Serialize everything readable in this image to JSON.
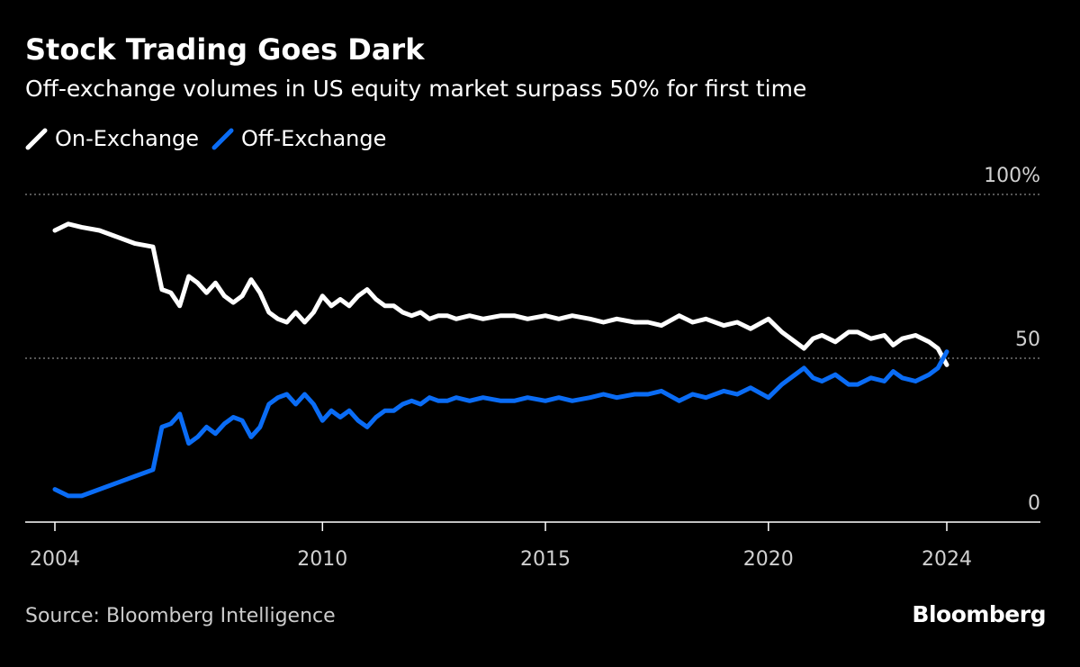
{
  "chart_data": {
    "type": "line",
    "title": "Stock Trading Goes Dark",
    "subtitle": "Off-exchange volumes in US equity market surpass 50% for first time",
    "x_ticks": [
      "2004",
      "2010",
      "2015",
      "2020",
      "2024"
    ],
    "y_ticks": [
      "0",
      "50",
      "100%"
    ],
    "xlim": [
      2004,
      2026
    ],
    "ylim": [
      0,
      100
    ],
    "grid": "dotted at 50 and 100",
    "legend_position": "top-left",
    "series": [
      {
        "name": "On-Exchange",
        "color": "#ffffff",
        "x": [
          2004.0,
          2004.3,
          2004.6,
          2005.0,
          2005.4,
          2005.8,
          2006.2,
          2006.4,
          2006.6,
          2006.8,
          2007.0,
          2007.2,
          2007.4,
          2007.6,
          2007.8,
          2008.0,
          2008.2,
          2008.4,
          2008.6,
          2008.8,
          2009.0,
          2009.2,
          2009.4,
          2009.6,
          2009.8,
          2010.0,
          2010.2,
          2010.4,
          2010.6,
          2010.8,
          2011.0,
          2011.2,
          2011.4,
          2011.6,
          2011.8,
          2012.0,
          2012.2,
          2012.4,
          2012.6,
          2012.8,
          2013.0,
          2013.3,
          2013.6,
          2014.0,
          2014.3,
          2014.6,
          2015.0,
          2015.3,
          2015.6,
          2016.0,
          2016.3,
          2016.6,
          2017.0,
          2017.3,
          2017.6,
          2018.0,
          2018.3,
          2018.6,
          2019.0,
          2019.3,
          2019.6,
          2020.0,
          2020.3,
          2020.6,
          2020.8,
          2021.0,
          2021.2,
          2021.5,
          2021.8,
          2022.0,
          2022.3,
          2022.6,
          2022.8,
          2023.0,
          2023.3,
          2023.6,
          2023.8,
          2024.0
        ],
        "values": [
          89,
          91,
          90,
          89,
          87,
          85,
          84,
          71,
          70,
          66,
          75,
          73,
          70,
          73,
          69,
          67,
          69,
          74,
          70,
          64,
          62,
          61,
          64,
          61,
          64,
          69,
          66,
          68,
          66,
          69,
          71,
          68,
          66,
          66,
          64,
          63,
          64,
          62,
          63,
          63,
          62,
          63,
          62,
          63,
          63,
          62,
          63,
          62,
          63,
          62,
          61,
          62,
          61,
          61,
          60,
          63,
          61,
          62,
          60,
          61,
          59,
          62,
          58,
          55,
          53,
          56,
          57,
          55,
          58,
          58,
          56,
          57,
          54,
          56,
          57,
          55,
          53,
          48
        ]
      },
      {
        "name": "Off-Exchange",
        "color": "#0a6cf5",
        "x": [
          2004.0,
          2004.3,
          2004.6,
          2005.0,
          2005.4,
          2005.8,
          2006.2,
          2006.4,
          2006.6,
          2006.8,
          2007.0,
          2007.2,
          2007.4,
          2007.6,
          2007.8,
          2008.0,
          2008.2,
          2008.4,
          2008.6,
          2008.8,
          2009.0,
          2009.2,
          2009.4,
          2009.6,
          2009.8,
          2010.0,
          2010.2,
          2010.4,
          2010.6,
          2010.8,
          2011.0,
          2011.2,
          2011.4,
          2011.6,
          2011.8,
          2012.0,
          2012.2,
          2012.4,
          2012.6,
          2012.8,
          2013.0,
          2013.3,
          2013.6,
          2014.0,
          2014.3,
          2014.6,
          2015.0,
          2015.3,
          2015.6,
          2016.0,
          2016.3,
          2016.6,
          2017.0,
          2017.3,
          2017.6,
          2018.0,
          2018.3,
          2018.6,
          2019.0,
          2019.3,
          2019.6,
          2020.0,
          2020.3,
          2020.6,
          2020.8,
          2021.0,
          2021.2,
          2021.5,
          2021.8,
          2022.0,
          2022.3,
          2022.6,
          2022.8,
          2023.0,
          2023.3,
          2023.6,
          2023.8,
          2024.0
        ],
        "values": [
          10,
          8,
          8,
          10,
          12,
          14,
          16,
          29,
          30,
          33,
          24,
          26,
          29,
          27,
          30,
          32,
          31,
          26,
          29,
          36,
          38,
          39,
          36,
          39,
          36,
          31,
          34,
          32,
          34,
          31,
          29,
          32,
          34,
          34,
          36,
          37,
          36,
          38,
          37,
          37,
          38,
          37,
          38,
          37,
          37,
          38,
          37,
          38,
          37,
          38,
          39,
          38,
          39,
          39,
          40,
          37,
          39,
          38,
          40,
          39,
          41,
          38,
          42,
          45,
          47,
          44,
          43,
          45,
          42,
          42,
          44,
          43,
          46,
          44,
          43,
          45,
          47,
          52
        ]
      }
    ]
  },
  "source": "Source: Bloomberg Intelligence",
  "brand": "Bloomberg"
}
